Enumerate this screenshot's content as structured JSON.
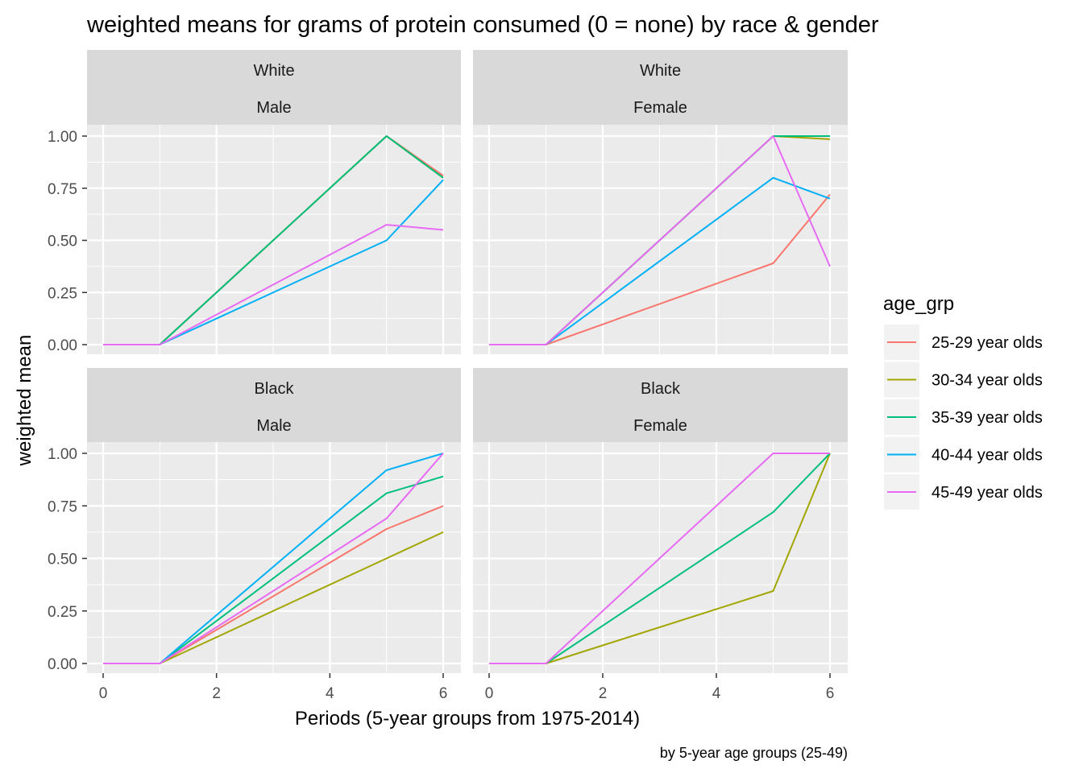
{
  "chart_data": {
    "type": "line",
    "title": "weighted means for grams of protein consumed (0 = none) by race & gender",
    "xlabel": "Periods (5-year groups from 1975-2014)",
    "ylabel": "weighted mean",
    "caption": "by 5-year age groups (25-49)",
    "xlim": [
      0,
      6
    ],
    "ylim": [
      0,
      1
    ],
    "x_ticks": [
      "0",
      "2",
      "4",
      "6"
    ],
    "y_ticks": [
      "0.00",
      "0.25",
      "0.50",
      "0.75",
      "1.00"
    ],
    "legend": {
      "title": "age_grp",
      "position": "right",
      "entries": [
        {
          "name": "25-29 year olds",
          "color": "#F8766D"
        },
        {
          "name": "30-34 year olds",
          "color": "#A3A500"
        },
        {
          "name": "35-39 year olds",
          "color": "#00BF7D"
        },
        {
          "name": "40-44 year olds",
          "color": "#00B0F6"
        },
        {
          "name": "45-49 year olds",
          "color": "#E76BF3"
        }
      ]
    },
    "grid": true,
    "panels": [
      {
        "race": "White",
        "gender": "Male",
        "series": [
          {
            "name": "25-29 year olds",
            "points": [
              [
                0,
                0
              ],
              [
                1,
                0
              ],
              [
                5,
                1.0
              ],
              [
                6,
                0.81
              ]
            ]
          },
          {
            "name": "30-34 year olds",
            "points": [
              [
                0,
                0
              ],
              [
                1,
                0
              ],
              [
                5,
                1.0
              ],
              [
                6,
                0.8
              ]
            ]
          },
          {
            "name": "35-39 year olds",
            "points": [
              [
                0,
                0
              ],
              [
                1,
                0
              ],
              [
                5,
                1.0
              ],
              [
                6,
                0.8
              ]
            ]
          },
          {
            "name": "40-44 year olds",
            "points": [
              [
                0,
                0
              ],
              [
                1,
                0
              ],
              [
                5,
                0.5
              ],
              [
                6,
                0.79
              ]
            ]
          },
          {
            "name": "45-49 year olds",
            "points": [
              [
                0,
                0
              ],
              [
                1,
                0
              ],
              [
                5,
                0.575
              ],
              [
                6,
                0.55
              ]
            ]
          }
        ]
      },
      {
        "race": "White",
        "gender": "Female",
        "series": [
          {
            "name": "25-29 year olds",
            "points": [
              [
                0,
                0
              ],
              [
                1,
                0
              ],
              [
                5,
                0.39
              ],
              [
                6,
                0.72
              ]
            ]
          },
          {
            "name": "30-34 year olds",
            "points": [
              [
                0,
                0
              ],
              [
                1,
                0
              ],
              [
                5,
                1.0
              ],
              [
                6,
                0.985
              ]
            ]
          },
          {
            "name": "35-39 year olds",
            "points": [
              [
                0,
                0
              ],
              [
                1,
                0
              ],
              [
                5,
                1.0
              ],
              [
                6,
                1.0
              ]
            ]
          },
          {
            "name": "40-44 year olds",
            "points": [
              [
                0,
                0
              ],
              [
                1,
                0
              ],
              [
                5,
                0.8
              ],
              [
                6,
                0.7
              ]
            ]
          },
          {
            "name": "45-49 year olds",
            "points": [
              [
                0,
                0
              ],
              [
                1,
                0
              ],
              [
                5,
                1.0
              ],
              [
                6,
                0.375
              ]
            ]
          }
        ]
      },
      {
        "race": "Black",
        "gender": "Male",
        "series": [
          {
            "name": "25-29 year olds",
            "points": [
              [
                0,
                0
              ],
              [
                1,
                0
              ],
              [
                5,
                0.64
              ],
              [
                6,
                0.75
              ]
            ]
          },
          {
            "name": "30-34 year olds",
            "points": [
              [
                0,
                0
              ],
              [
                1,
                0
              ],
              [
                5,
                0.5
              ],
              [
                6,
                0.625
              ]
            ]
          },
          {
            "name": "35-39 year olds",
            "points": [
              [
                0,
                0
              ],
              [
                1,
                0
              ],
              [
                5,
                0.81
              ],
              [
                6,
                0.89
              ]
            ]
          },
          {
            "name": "40-44 year olds",
            "points": [
              [
                0,
                0
              ],
              [
                1,
                0
              ],
              [
                5,
                0.92
              ],
              [
                6,
                1.0
              ]
            ]
          },
          {
            "name": "45-49 year olds",
            "points": [
              [
                0,
                0
              ],
              [
                1,
                0
              ],
              [
                5,
                0.69
              ],
              [
                6,
                1.0
              ]
            ]
          }
        ]
      },
      {
        "race": "Black",
        "gender": "Female",
        "series": [
          {
            "name": "30-34 year olds",
            "points": [
              [
                0,
                0
              ],
              [
                1,
                0
              ],
              [
                5,
                0.345
              ],
              [
                6,
                1.0
              ]
            ]
          },
          {
            "name": "35-39 year olds",
            "points": [
              [
                0,
                0
              ],
              [
                1,
                0
              ],
              [
                5,
                0.72
              ],
              [
                6,
                1.0
              ]
            ]
          },
          {
            "name": "45-49 year olds",
            "points": [
              [
                0,
                0
              ],
              [
                1,
                0
              ],
              [
                5,
                1.0
              ],
              [
                6,
                1.0
              ]
            ]
          }
        ]
      }
    ]
  }
}
